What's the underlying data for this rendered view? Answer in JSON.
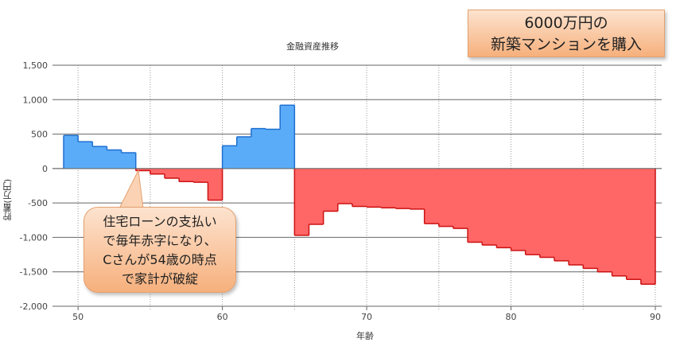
{
  "chart_data": {
    "type": "area",
    "title": "金融資産推移",
    "xlabel": "年齢",
    "ylabel": "貯蓄(万円)",
    "xlim": [
      49,
      90
    ],
    "ylim": [
      -2000,
      1500
    ],
    "x_ticks": [
      50,
      60,
      70,
      80,
      90
    ],
    "y_ticks": [
      1500,
      1000,
      500,
      0,
      -500,
      -1000,
      -1500,
      -2000
    ],
    "y_tick_labels": [
      "1,500",
      "1,000",
      "500",
      "0",
      "-500",
      "-1,000",
      "-1,500",
      "-2,000"
    ],
    "grid": {
      "horizontal": true,
      "vertical_dotted": true
    },
    "colors": {
      "positive": "#5aacf8",
      "positive_edge": "#1f6fd0",
      "negative": "#ff6666",
      "negative_edge": "#cc1111"
    },
    "x": [
      49,
      50,
      51,
      52,
      53,
      54,
      55,
      56,
      57,
      58,
      59,
      60,
      61,
      62,
      63,
      64,
      65,
      66,
      67,
      68,
      69,
      70,
      71,
      72,
      73,
      74,
      75,
      76,
      77,
      78,
      79,
      80,
      81,
      82,
      83,
      84,
      85,
      86,
      87,
      88,
      89
    ],
    "values": [
      480,
      390,
      320,
      270,
      230,
      -30,
      -80,
      -140,
      -190,
      -200,
      -460,
      330,
      460,
      580,
      570,
      920,
      -970,
      -810,
      -620,
      -510,
      -550,
      -560,
      -570,
      -580,
      -590,
      -800,
      -840,
      -870,
      -1070,
      -1110,
      -1150,
      -1190,
      -1250,
      -1290,
      -1340,
      -1400,
      -1450,
      -1500,
      -1560,
      -1610,
      -1680
    ],
    "annotations": [
      "6000万円の 新築マンションを購入",
      "住宅ローンの支払いで毎年赤字になり、Cさんが54歳の時点で家計が破綻"
    ]
  },
  "callout_top": {
    "line1": "6000万円の",
    "line2": "新築マンションを購入"
  },
  "bubble": {
    "line1": "住宅ローンの支払い",
    "line2": "で毎年赤字になり、",
    "line3": "Cさんが54歳の時点",
    "line4": "で家計が破綻"
  }
}
